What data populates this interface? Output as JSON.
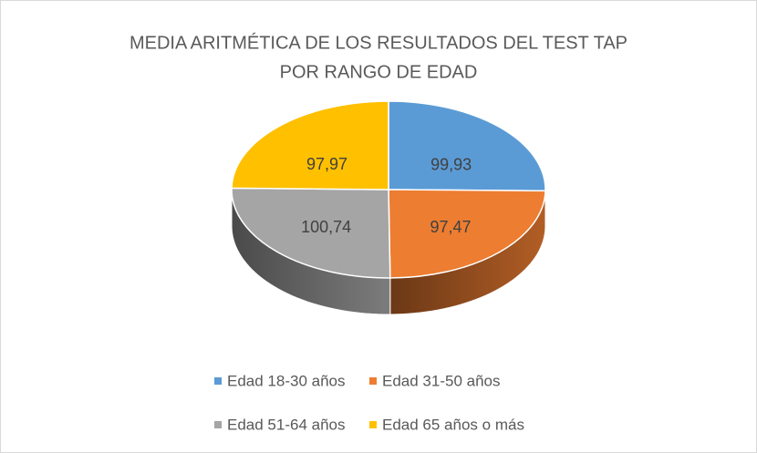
{
  "chart_data": {
    "type": "pie3d",
    "title": [
      "MEDIA ARITMÉTICA DE LOS RESULTADOS DEL TEST TAP",
      "POR RANGO DE EDAD"
    ],
    "categories": [
      "Edad 18-30 años",
      "Edad 31-50 años",
      "Edad 51-64 años",
      "Edad 65 años o más"
    ],
    "values": [
      99.93,
      97.47,
      100.74,
      97.97
    ],
    "value_labels": [
      "99,93",
      "97,47",
      "100,74",
      "97,97"
    ],
    "colors": [
      "#5b9bd5",
      "#ed7d31",
      "#a5a5a5",
      "#ffc000"
    ],
    "legend": "bottom"
  }
}
